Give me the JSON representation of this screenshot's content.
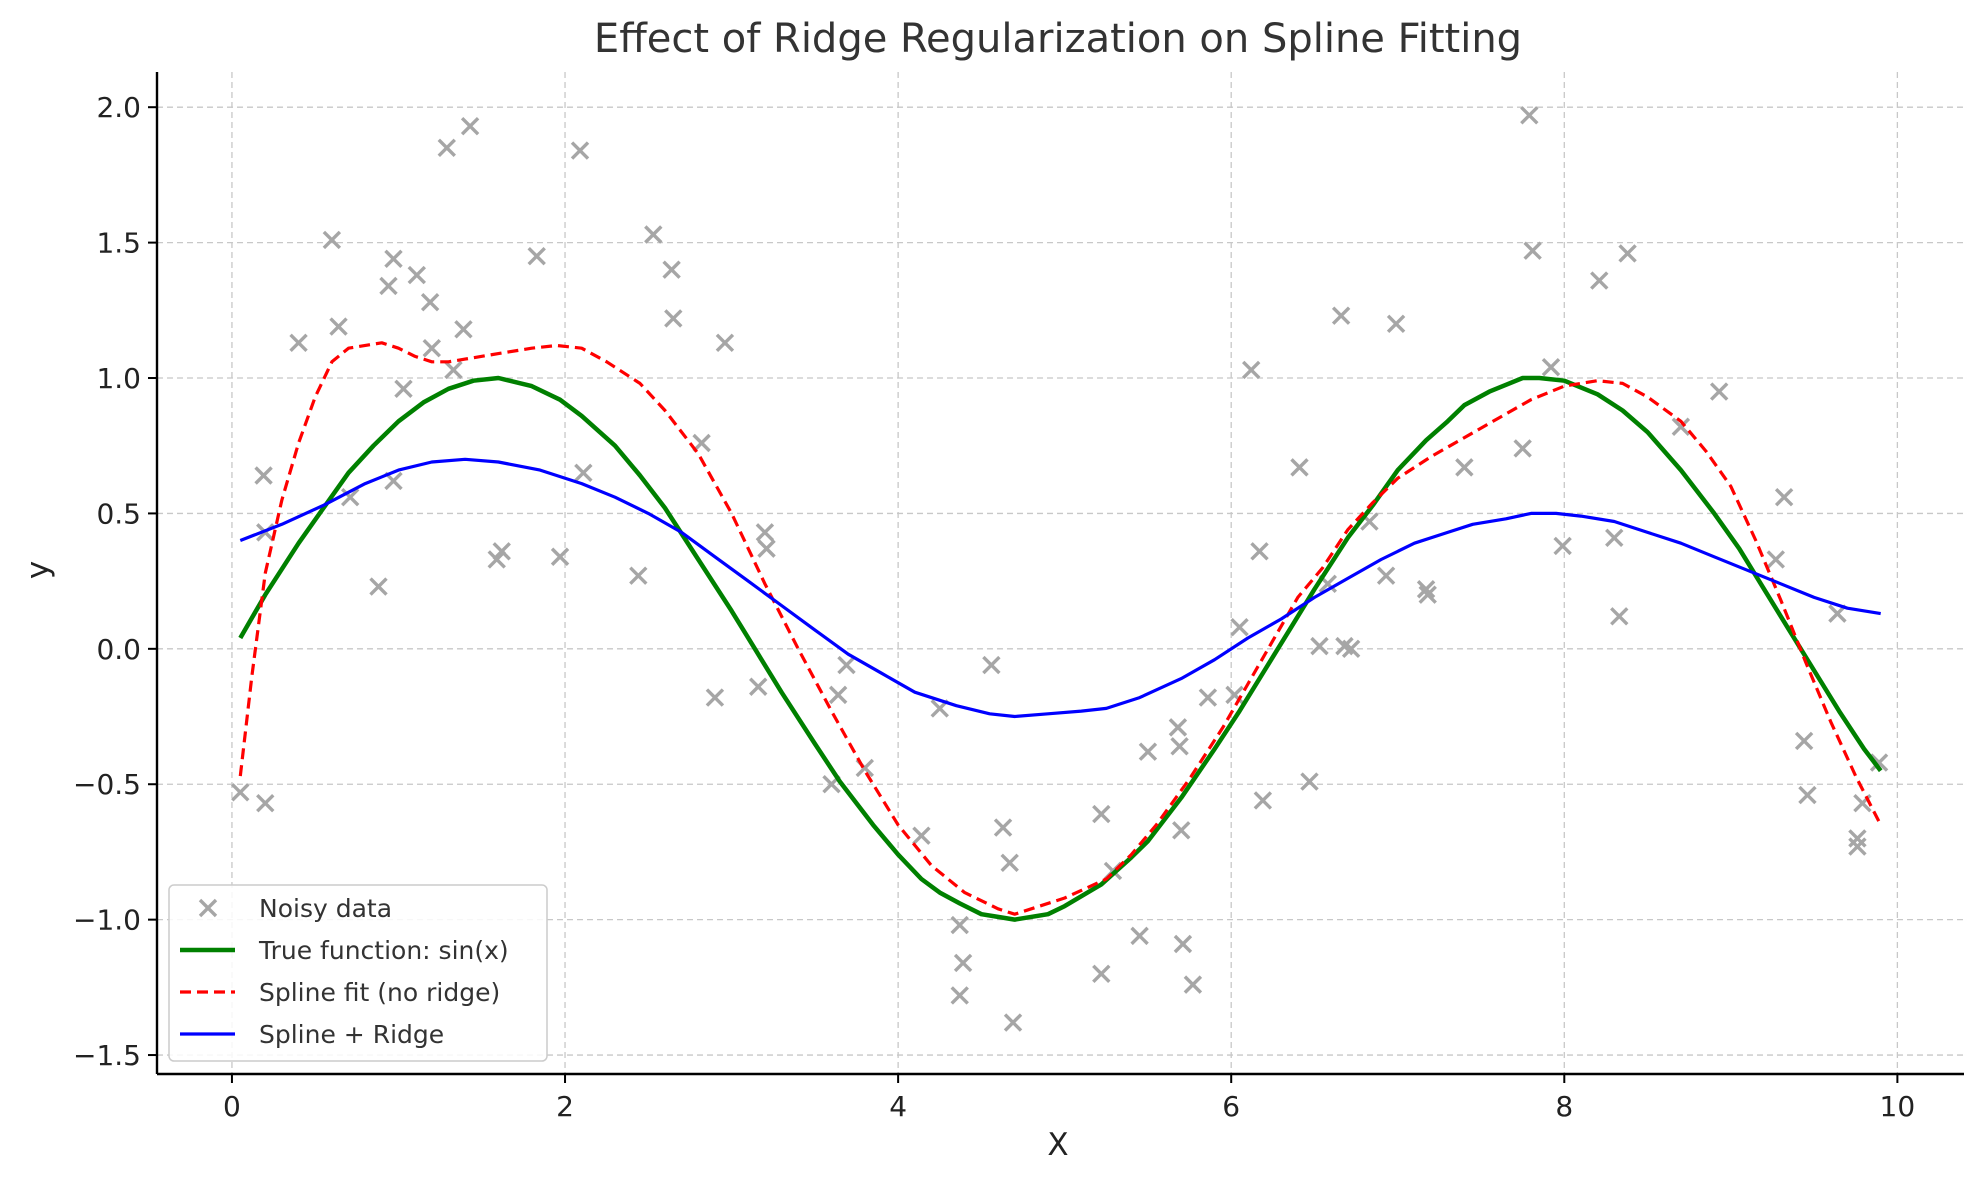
{
  "chart_data": {
    "type": "line",
    "title": "Effect of Ridge Regularization on Spline Fitting",
    "xlabel": "X",
    "ylabel": "y",
    "xlim": [
      -0.45,
      10.4
    ],
    "ylim": [
      -1.57,
      2.13
    ],
    "x_ticks": [
      0,
      2,
      4,
      6,
      8,
      10
    ],
    "x_tick_labels": [
      "0",
      "2",
      "4",
      "6",
      "8",
      "10"
    ],
    "y_ticks": [
      -1.5,
      -1.0,
      -0.5,
      0.0,
      0.5,
      1.0,
      1.5,
      2.0
    ],
    "y_tick_labels": [
      "−1.5",
      "−1.0",
      "−0.5",
      "0.0",
      "0.5",
      "1.0",
      "1.5",
      "2.0"
    ],
    "grid": true,
    "legend_position": "lower-left",
    "colors": {
      "noisy": "#a6a6a6",
      "true": "#008000",
      "spline": "#ff0000",
      "ridge": "#0000ff"
    },
    "legend": [
      {
        "key": "noisy",
        "label": "Noisy data",
        "style": "marker-x"
      },
      {
        "key": "true",
        "label": "True function: sin(x)",
        "style": "solid-thick"
      },
      {
        "key": "spline",
        "label": "Spline fit (no ridge)",
        "style": "dashed"
      },
      {
        "key": "ridge",
        "label": "Spline + Ridge",
        "style": "solid"
      }
    ],
    "scatter": {
      "name": "Noisy data",
      "points": [
        [
          0.05,
          -0.53
        ],
        [
          0.19,
          0.64
        ],
        [
          0.2,
          -0.57
        ],
        [
          0.2,
          0.43
        ],
        [
          0.4,
          1.13
        ],
        [
          0.6,
          1.51
        ],
        [
          0.64,
          1.19
        ],
        [
          0.71,
          0.56
        ],
        [
          0.88,
          0.23
        ],
        [
          0.94,
          1.34
        ],
        [
          0.97,
          1.44
        ],
        [
          0.97,
          0.62
        ],
        [
          1.03,
          0.96
        ],
        [
          1.11,
          1.38
        ],
        [
          1.19,
          1.28
        ],
        [
          1.2,
          1.11
        ],
        [
          1.29,
          1.85
        ],
        [
          1.33,
          1.03
        ],
        [
          1.39,
          1.18
        ],
        [
          1.43,
          1.93
        ],
        [
          1.59,
          0.33
        ],
        [
          1.62,
          0.36
        ],
        [
          1.83,
          1.45
        ],
        [
          1.97,
          0.34
        ],
        [
          2.09,
          1.84
        ],
        [
          2.11,
          0.65
        ],
        [
          2.44,
          0.27
        ],
        [
          2.53,
          1.53
        ],
        [
          2.64,
          1.4
        ],
        [
          2.65,
          1.22
        ],
        [
          2.82,
          0.76
        ],
        [
          2.9,
          -0.18
        ],
        [
          2.96,
          1.13
        ],
        [
          3.16,
          -0.14
        ],
        [
          3.2,
          0.43
        ],
        [
          3.21,
          0.37
        ],
        [
          3.6,
          -0.5
        ],
        [
          3.64,
          -0.17
        ],
        [
          3.69,
          -0.06
        ],
        [
          3.8,
          -0.44
        ],
        [
          4.14,
          -0.69
        ],
        [
          4.25,
          -0.22
        ],
        [
          4.37,
          -1.02
        ],
        [
          4.37,
          -1.28
        ],
        [
          4.39,
          -1.16
        ],
        [
          4.56,
          -0.06
        ],
        [
          4.63,
          -0.66
        ],
        [
          4.67,
          -0.79
        ],
        [
          4.69,
          -1.38
        ],
        [
          5.22,
          -0.61
        ],
        [
          5.22,
          -1.2
        ],
        [
          5.29,
          -0.82
        ],
        [
          5.45,
          -1.06
        ],
        [
          5.5,
          -0.38
        ],
        [
          5.68,
          -0.29
        ],
        [
          5.69,
          -0.36
        ],
        [
          5.7,
          -0.67
        ],
        [
          5.71,
          -1.09
        ],
        [
          5.77,
          -1.24
        ],
        [
          5.86,
          -0.18
        ],
        [
          6.02,
          -0.17
        ],
        [
          6.05,
          0.08
        ],
        [
          6.12,
          1.03
        ],
        [
          6.17,
          0.36
        ],
        [
          6.19,
          -0.56
        ],
        [
          6.41,
          0.67
        ],
        [
          6.47,
          -0.49
        ],
        [
          6.53,
          0.01
        ],
        [
          6.58,
          0.24
        ],
        [
          6.66,
          1.23
        ],
        [
          6.68,
          0.01
        ],
        [
          6.72,
          0.0
        ],
        [
          6.83,
          0.47
        ],
        [
          6.93,
          0.27
        ],
        [
          6.99,
          1.2
        ],
        [
          7.17,
          0.22
        ],
        [
          7.18,
          0.2
        ],
        [
          7.4,
          0.67
        ],
        [
          7.75,
          0.74
        ],
        [
          7.79,
          1.97
        ],
        [
          7.81,
          1.47
        ],
        [
          7.92,
          1.04
        ],
        [
          7.99,
          0.38
        ],
        [
          8.21,
          1.36
        ],
        [
          8.3,
          0.41
        ],
        [
          8.33,
          0.12
        ],
        [
          8.38,
          1.46
        ],
        [
          8.7,
          0.82
        ],
        [
          8.93,
          0.95
        ],
        [
          9.27,
          0.33
        ],
        [
          9.32,
          0.56
        ],
        [
          9.44,
          -0.34
        ],
        [
          9.46,
          -0.54
        ],
        [
          9.64,
          0.13
        ],
        [
          9.76,
          -0.7
        ],
        [
          9.76,
          -0.73
        ],
        [
          9.79,
          -0.57
        ],
        [
          9.89,
          -0.42
        ]
      ]
    },
    "series": [
      {
        "key": "true",
        "name": "True function: sin(x)",
        "points": [
          [
            0.05,
            0.04
          ],
          [
            0.2,
            0.2
          ],
          [
            0.4,
            0.39
          ],
          [
            0.55,
            0.52
          ],
          [
            0.7,
            0.65
          ],
          [
            0.85,
            0.75
          ],
          [
            1.0,
            0.84
          ],
          [
            1.15,
            0.91
          ],
          [
            1.3,
            0.96
          ],
          [
            1.45,
            0.99
          ],
          [
            1.6,
            1.0
          ],
          [
            1.8,
            0.97
          ],
          [
            1.97,
            0.92
          ],
          [
            2.1,
            0.86
          ],
          [
            2.3,
            0.75
          ],
          [
            2.45,
            0.64
          ],
          [
            2.6,
            0.52
          ],
          [
            2.8,
            0.33
          ],
          [
            3.0,
            0.14
          ],
          [
            3.14,
            0.0
          ],
          [
            3.3,
            -0.16
          ],
          [
            3.5,
            -0.35
          ],
          [
            3.65,
            -0.49
          ],
          [
            3.85,
            -0.65
          ],
          [
            4.0,
            -0.76
          ],
          [
            4.14,
            -0.85
          ],
          [
            4.25,
            -0.9
          ],
          [
            4.37,
            -0.94
          ],
          [
            4.5,
            -0.98
          ],
          [
            4.6,
            -0.99
          ],
          [
            4.7,
            -1.0
          ],
          [
            4.9,
            -0.98
          ],
          [
            5.0,
            -0.95
          ],
          [
            5.22,
            -0.87
          ],
          [
            5.4,
            -0.77
          ],
          [
            5.5,
            -0.71
          ],
          [
            5.7,
            -0.55
          ],
          [
            5.9,
            -0.37
          ],
          [
            6.05,
            -0.23
          ],
          [
            6.2,
            -0.08
          ],
          [
            6.35,
            0.07
          ],
          [
            6.5,
            0.22
          ],
          [
            6.7,
            0.41
          ],
          [
            6.85,
            0.53
          ],
          [
            7.0,
            0.66
          ],
          [
            7.17,
            0.77
          ],
          [
            7.3,
            0.84
          ],
          [
            7.4,
            0.9
          ],
          [
            7.55,
            0.95
          ],
          [
            7.75,
            1.0
          ],
          [
            7.85,
            1.0
          ],
          [
            8.0,
            0.99
          ],
          [
            8.2,
            0.94
          ],
          [
            8.35,
            0.88
          ],
          [
            8.5,
            0.8
          ],
          [
            8.7,
            0.66
          ],
          [
            8.9,
            0.5
          ],
          [
            9.05,
            0.37
          ],
          [
            9.2,
            0.22
          ],
          [
            9.35,
            0.07
          ],
          [
            9.5,
            -0.08
          ],
          [
            9.65,
            -0.23
          ],
          [
            9.8,
            -0.37
          ],
          [
            9.9,
            -0.45
          ]
        ]
      },
      {
        "key": "spline",
        "name": "Spline fit (no ridge)",
        "points": [
          [
            0.05,
            -0.47
          ],
          [
            0.12,
            -0.1
          ],
          [
            0.2,
            0.28
          ],
          [
            0.3,
            0.55
          ],
          [
            0.4,
            0.76
          ],
          [
            0.5,
            0.93
          ],
          [
            0.6,
            1.06
          ],
          [
            0.7,
            1.11
          ],
          [
            0.9,
            1.13
          ],
          [
            1.0,
            1.11
          ],
          [
            1.1,
            1.08
          ],
          [
            1.2,
            1.06
          ],
          [
            1.3,
            1.06
          ],
          [
            1.4,
            1.07
          ],
          [
            1.6,
            1.09
          ],
          [
            1.8,
            1.11
          ],
          [
            1.95,
            1.12
          ],
          [
            2.1,
            1.11
          ],
          [
            2.25,
            1.06
          ],
          [
            2.45,
            0.98
          ],
          [
            2.6,
            0.88
          ],
          [
            2.8,
            0.72
          ],
          [
            3.0,
            0.5
          ],
          [
            3.2,
            0.24
          ],
          [
            3.4,
            0.0
          ],
          [
            3.6,
            -0.23
          ],
          [
            3.8,
            -0.45
          ],
          [
            4.0,
            -0.65
          ],
          [
            4.2,
            -0.8
          ],
          [
            4.4,
            -0.9
          ],
          [
            4.6,
            -0.96
          ],
          [
            4.7,
            -0.98
          ],
          [
            4.85,
            -0.95
          ],
          [
            5.0,
            -0.92
          ],
          [
            5.25,
            -0.85
          ],
          [
            5.4,
            -0.76
          ],
          [
            5.55,
            -0.65
          ],
          [
            5.75,
            -0.48
          ],
          [
            5.95,
            -0.29
          ],
          [
            6.1,
            -0.13
          ],
          [
            6.25,
            0.03
          ],
          [
            6.4,
            0.19
          ],
          [
            6.55,
            0.3
          ],
          [
            6.7,
            0.44
          ],
          [
            6.85,
            0.54
          ],
          [
            7.0,
            0.63
          ],
          [
            7.2,
            0.71
          ],
          [
            7.4,
            0.78
          ],
          [
            7.6,
            0.85
          ],
          [
            7.8,
            0.92
          ],
          [
            8.0,
            0.97
          ],
          [
            8.2,
            0.99
          ],
          [
            8.35,
            0.98
          ],
          [
            8.5,
            0.93
          ],
          [
            8.7,
            0.84
          ],
          [
            8.85,
            0.73
          ],
          [
            9.0,
            0.6
          ],
          [
            9.15,
            0.4
          ],
          [
            9.3,
            0.18
          ],
          [
            9.45,
            -0.05
          ],
          [
            9.6,
            -0.27
          ],
          [
            9.75,
            -0.47
          ],
          [
            9.9,
            -0.65
          ]
        ]
      },
      {
        "key": "ridge",
        "name": "Spline + Ridge",
        "points": [
          [
            0.05,
            0.4
          ],
          [
            0.3,
            0.46
          ],
          [
            0.55,
            0.53
          ],
          [
            0.8,
            0.61
          ],
          [
            1.0,
            0.66
          ],
          [
            1.2,
            0.69
          ],
          [
            1.4,
            0.7
          ],
          [
            1.6,
            0.69
          ],
          [
            1.85,
            0.66
          ],
          [
            2.1,
            0.61
          ],
          [
            2.3,
            0.56
          ],
          [
            2.5,
            0.5
          ],
          [
            2.7,
            0.43
          ],
          [
            2.9,
            0.34
          ],
          [
            3.1,
            0.25
          ],
          [
            3.3,
            0.16
          ],
          [
            3.5,
            0.07
          ],
          [
            3.7,
            -0.02
          ],
          [
            3.9,
            -0.09
          ],
          [
            4.1,
            -0.16
          ],
          [
            4.35,
            -0.21
          ],
          [
            4.55,
            -0.24
          ],
          [
            4.7,
            -0.25
          ],
          [
            4.9,
            -0.24
          ],
          [
            5.1,
            -0.23
          ],
          [
            5.25,
            -0.22
          ],
          [
            5.45,
            -0.18
          ],
          [
            5.7,
            -0.11
          ],
          [
            5.9,
            -0.04
          ],
          [
            6.1,
            0.04
          ],
          [
            6.3,
            0.11
          ],
          [
            6.5,
            0.19
          ],
          [
            6.7,
            0.26
          ],
          [
            6.9,
            0.33
          ],
          [
            7.1,
            0.39
          ],
          [
            7.3,
            0.43
          ],
          [
            7.45,
            0.46
          ],
          [
            7.65,
            0.48
          ],
          [
            7.8,
            0.5
          ],
          [
            7.95,
            0.5
          ],
          [
            8.1,
            0.49
          ],
          [
            8.3,
            0.47
          ],
          [
            8.5,
            0.43
          ],
          [
            8.7,
            0.39
          ],
          [
            8.9,
            0.34
          ],
          [
            9.1,
            0.29
          ],
          [
            9.3,
            0.24
          ],
          [
            9.5,
            0.19
          ],
          [
            9.7,
            0.15
          ],
          [
            9.9,
            0.13
          ]
        ]
      }
    ]
  }
}
